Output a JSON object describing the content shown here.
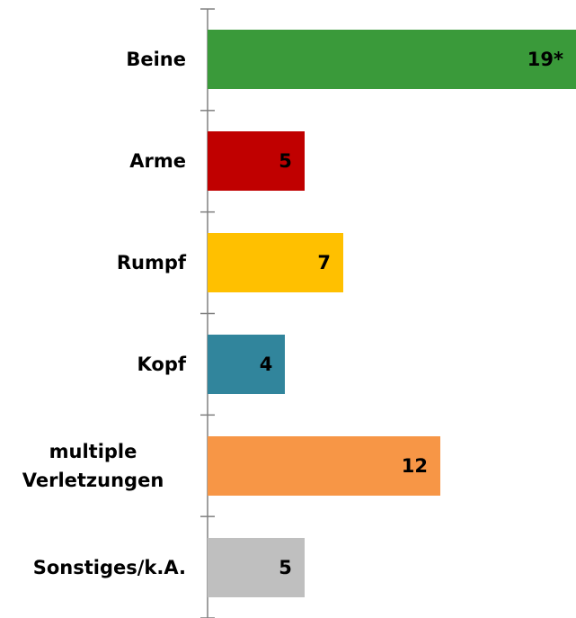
{
  "chart_data": {
    "type": "bar",
    "orientation": "horizontal",
    "categories": [
      "Beine",
      "Arme",
      "Rumpf",
      "Kopf",
      "multiple Verletzungen",
      "Sonstiges/k.A."
    ],
    "values": [
      19,
      5,
      7,
      4,
      12,
      5
    ],
    "value_labels": [
      "19*",
      "5",
      "7",
      "4",
      "12",
      "5"
    ],
    "colors": [
      "#3a9a3a",
      "#c00000",
      "#ffc000",
      "#31859c",
      "#f79646",
      "#bfbfbf"
    ],
    "xlim": [
      0,
      19
    ]
  }
}
